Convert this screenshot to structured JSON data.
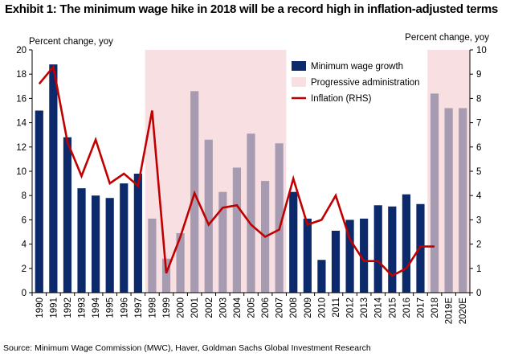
{
  "title": "Exhibit 1: The minimum wage hike in 2018 will be a record high in inflation-adjusted terms",
  "source": "Source: Minimum Wage Commission (MWC), Haver, Goldman Sachs Global Investment Research",
  "colors": {
    "bar_actual": "#0c2a6b",
    "bar_projected": "#a79bb2",
    "band": "#f7dfe2",
    "inflation": "#c00000"
  },
  "chart_data": {
    "type": "bar",
    "categories": [
      "1990",
      "1991",
      "1992",
      "1993",
      "1994",
      "1995",
      "1996",
      "1997",
      "1998",
      "1999",
      "2000",
      "2001",
      "2002",
      "2003",
      "2004",
      "2005",
      "2006",
      "2007",
      "2008",
      "2009",
      "2010",
      "2011",
      "2012",
      "2013",
      "2014",
      "2015",
      "2016",
      "2017",
      "2018",
      "2019E",
      "2020E"
    ],
    "series": [
      {
        "name": "Minimum wage growth",
        "axis": "left",
        "values": [
          15.0,
          18.8,
          12.8,
          8.6,
          8.0,
          7.8,
          9.0,
          9.8,
          6.1,
          2.8,
          4.9,
          16.6,
          12.6,
          8.3,
          10.3,
          13.1,
          9.2,
          12.3,
          8.3,
          6.1,
          2.7,
          5.1,
          6.0,
          6.1,
          7.2,
          7.1,
          8.1,
          7.3,
          16.4,
          15.2,
          15.2
        ]
      },
      {
        "name": "Inflation (RHS)",
        "type": "line",
        "axis": "right",
        "values": [
          8.6,
          9.3,
          6.2,
          4.8,
          6.3,
          4.5,
          4.9,
          4.4,
          7.5,
          0.8,
          2.3,
          4.1,
          2.8,
          3.5,
          3.6,
          2.8,
          2.3,
          2.6,
          4.7,
          2.8,
          3.0,
          4.0,
          2.2,
          1.3,
          1.3,
          0.7,
          1.0,
          1.9,
          1.9,
          null,
          null
        ]
      }
    ],
    "shaded_periods": [
      {
        "name": "Progressive administration",
        "start": "1998",
        "end": "2007"
      },
      {
        "name": "Progressive administration",
        "start": "2018",
        "end": "2020E"
      }
    ],
    "projected_categories": [
      "1998",
      "1999",
      "2000",
      "2001",
      "2002",
      "2003",
      "2004",
      "2005",
      "2006",
      "2007",
      "2018",
      "2019E",
      "2020E"
    ],
    "legend": [
      "Minimum wage growth",
      "Progressive administration",
      "Inflation (RHS)"
    ],
    "legend_position": "top-right",
    "ylabel": "Percent change, yoy",
    "y2label": "Percent change, yoy",
    "ylim": [
      0,
      20
    ],
    "y2lim": [
      0,
      10
    ],
    "yticks": [
      "0",
      "2",
      "4",
      "6",
      "8",
      "10",
      "12",
      "14",
      "16",
      "18",
      "20"
    ],
    "y2ticks": [
      "0",
      "1",
      "2",
      "3",
      "4",
      "5",
      "6",
      "7",
      "8",
      "9",
      "10"
    ],
    "grid": false
  }
}
